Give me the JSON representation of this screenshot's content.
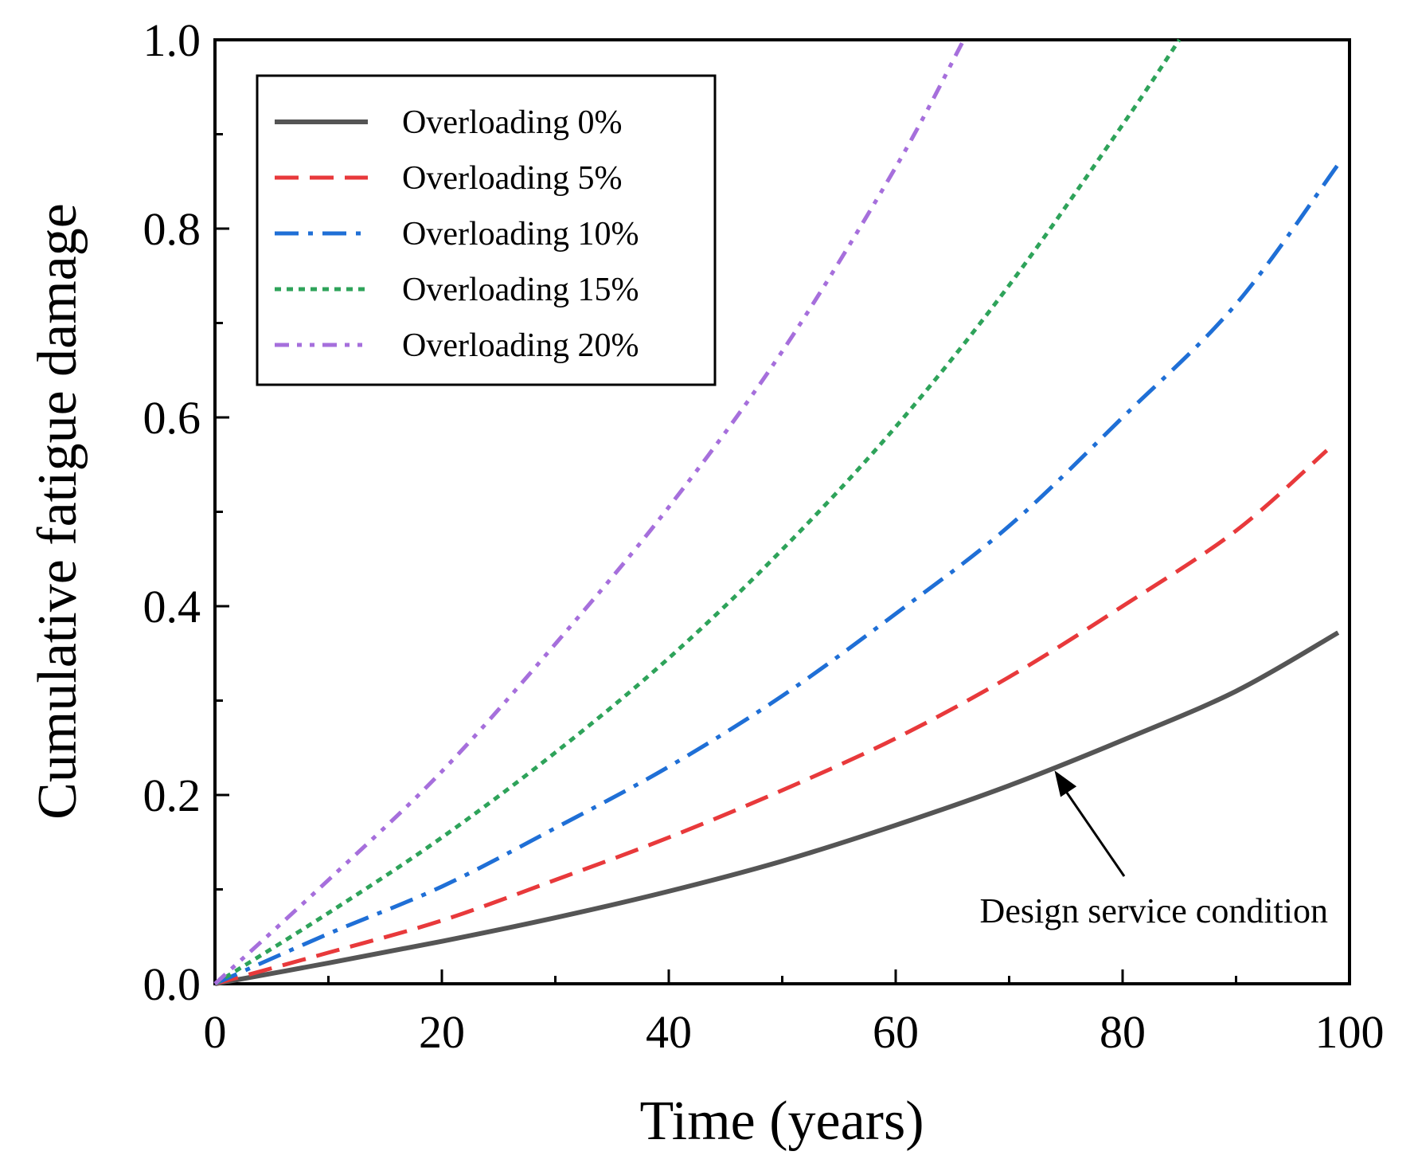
{
  "chart_data": {
    "type": "line",
    "title": "",
    "xlabel": "Time (years)",
    "ylabel": "Cumulative fatigue damage",
    "xlim": [
      0,
      100
    ],
    "ylim": [
      0,
      1.0
    ],
    "xticks": [
      "0",
      "20",
      "40",
      "60",
      "80",
      "100"
    ],
    "yticks": [
      "0.0",
      "0.2",
      "0.4",
      "0.6",
      "0.8",
      "1.0"
    ],
    "legend_position": "top-left",
    "series": [
      {
        "name": "Overloading 0%",
        "color": "#555555",
        "style": "solid",
        "x": [
          0,
          10,
          20,
          30,
          40,
          50,
          60,
          70,
          80,
          90,
          99
        ],
        "y": [
          0,
          0.022,
          0.045,
          0.07,
          0.098,
          0.13,
          0.168,
          0.21,
          0.258,
          0.31,
          0.372
        ]
      },
      {
        "name": "Overloading 5%",
        "color": "#e8393b",
        "style": "dash",
        "x": [
          0,
          10,
          20,
          30,
          40,
          50,
          60,
          70,
          80,
          90,
          98
        ],
        "y": [
          0,
          0.033,
          0.067,
          0.11,
          0.155,
          0.205,
          0.26,
          0.325,
          0.4,
          0.48,
          0.565
        ]
      },
      {
        "name": "Overloading 10%",
        "color": "#1f6fd6",
        "style": "dashdot",
        "x": [
          0,
          10,
          20,
          30,
          40,
          50,
          60,
          70,
          80,
          90,
          99
        ],
        "y": [
          0,
          0.053,
          0.103,
          0.165,
          0.23,
          0.305,
          0.392,
          0.485,
          0.6,
          0.72,
          0.868
        ]
      },
      {
        "name": "Overloading 15%",
        "color": "#2ea35a",
        "style": "dot",
        "x": [
          0,
          10,
          20,
          30,
          40,
          50,
          60,
          70,
          80,
          85
        ],
        "y": [
          0,
          0.075,
          0.155,
          0.245,
          0.345,
          0.46,
          0.59,
          0.74,
          0.91,
          1.0
        ]
      },
      {
        "name": "Overloading 20%",
        "color": "#a66fdc",
        "style": "dashdotdot",
        "x": [
          0,
          10,
          20,
          30,
          40,
          50,
          60,
          66
        ],
        "y": [
          0,
          0.11,
          0.225,
          0.36,
          0.505,
          0.67,
          0.865,
          1.0
        ]
      }
    ],
    "annotations": [
      {
        "text": "Design service condition",
        "arrow_to": {
          "x": 74,
          "y": 0.226
        }
      }
    ]
  }
}
